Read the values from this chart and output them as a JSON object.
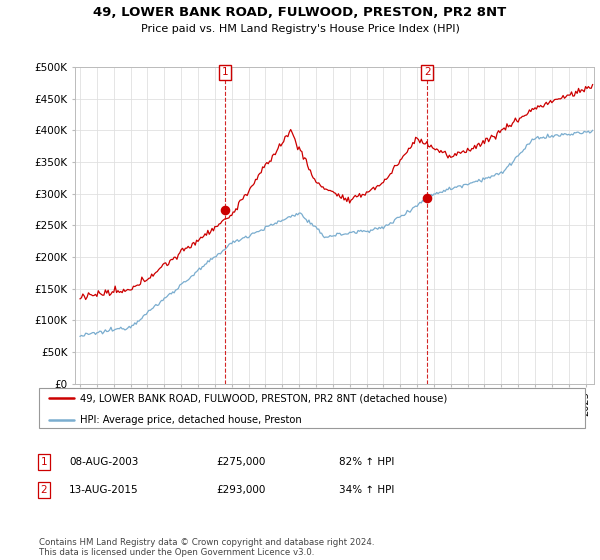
{
  "title_line1": "49, LOWER BANK ROAD, FULWOOD, PRESTON, PR2 8NT",
  "title_line2": "Price paid vs. HM Land Registry's House Price Index (HPI)",
  "ylabel_ticks": [
    "£0",
    "£50K",
    "£100K",
    "£150K",
    "£200K",
    "£250K",
    "£300K",
    "£350K",
    "£400K",
    "£450K",
    "£500K"
  ],
  "ytick_vals": [
    0,
    50000,
    100000,
    150000,
    200000,
    250000,
    300000,
    350000,
    400000,
    450000,
    500000
  ],
  "ylim": [
    0,
    500000
  ],
  "xlim_start": 1994.7,
  "xlim_end": 2025.5,
  "transaction1_date": 2003.6,
  "transaction1_price": 275000,
  "transaction2_date": 2015.6,
  "transaction2_price": 293000,
  "legend_line1": "49, LOWER BANK ROAD, FULWOOD, PRESTON, PR2 8NT (detached house)",
  "legend_line2": "HPI: Average price, detached house, Preston",
  "table_row1_date": "08-AUG-2003",
  "table_row1_price": "£275,000",
  "table_row1_hpi": "82% ↑ HPI",
  "table_row2_date": "13-AUG-2015",
  "table_row2_price": "£293,000",
  "table_row2_hpi": "34% ↑ HPI",
  "footnote": "Contains HM Land Registry data © Crown copyright and database right 2024.\nThis data is licensed under the Open Government Licence v3.0.",
  "red_color": "#cc0000",
  "blue_color": "#7aadcf",
  "grid_color": "#e0e0e0"
}
